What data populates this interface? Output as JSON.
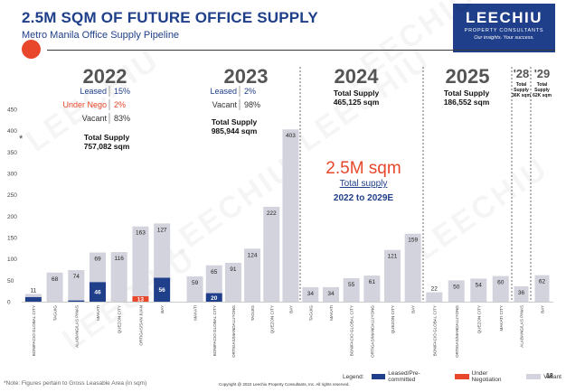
{
  "header": {
    "title": "2.5M SQM OF FUTURE OFFICE SUPPLY",
    "subtitle": "Metro Manila Office Supply Pipeline"
  },
  "logo": {
    "name": "LEECHIU",
    "sub": "PROPERTY CONSULTANTS",
    "tagline": "Our insights. Your success."
  },
  "watermark_text": "LEECHIU",
  "asterisk": "*",
  "colors": {
    "leased": "#1f3f8a",
    "under_nego": "#e8472b",
    "vacant": "#d3d3dd",
    "brand": "#1f3f8a"
  },
  "legend": {
    "title": "Legend:",
    "leased": "Leased/Pre-committed",
    "under_nego": "Under Negotiation",
    "vacant": "Vacant"
  },
  "footer": {
    "note": "*Note: Figures pertain to Gross Leasable Area (in sqm)",
    "copyright": "Copyright @ 2022 Leechiu Property Consultants, Inc. All rights reserved.",
    "page": "18"
  },
  "chart_data": {
    "type": "bar",
    "stacked": true,
    "ylim": [
      0,
      450
    ],
    "yticks": [
      0,
      50,
      100,
      150,
      200,
      250,
      300,
      350,
      400,
      450
    ],
    "grid": false,
    "legend_position": "bottom-right",
    "series_names": [
      "Leased/Pre-committed",
      "Under Negotiation",
      "Vacant"
    ],
    "highlight": {
      "big": "2.5M sqm",
      "label": "Total supply",
      "range": "2022 to 2029E"
    },
    "panels": [
      {
        "year": "2022",
        "stats": [
          {
            "label": "Leased",
            "value": "15%",
            "color": "#1f3f8a"
          },
          {
            "label": "Under Nego",
            "value": "2%",
            "color": "#e8472b"
          },
          {
            "label": "Vacant",
            "value": "83%",
            "color": "#333333"
          }
        ],
        "total_label": "Total Supply",
        "total_value": "757,082 sqm",
        "bars": [
          {
            "category": "BONIFACIO GLOBAL CITY",
            "leased": 11,
            "nego": 0,
            "vacant": 7,
            "label": "11"
          },
          {
            "category": "TAGUIG",
            "leased": 0,
            "nego": 0,
            "vacant": 68,
            "label": "68"
          },
          {
            "category": "ALABANG/LAS PINAS",
            "leased": 3,
            "nego": 0,
            "vacant": 71,
            "label": "74"
          },
          {
            "category": "MAKATI",
            "leased": 46,
            "nego": 0,
            "vacant": 69,
            "label": "69",
            "leased_label": "46"
          },
          {
            "category": "QUEZON CITY",
            "leased": 0,
            "nego": 0,
            "vacant": 116,
            "label": "116"
          },
          {
            "category": "ORTIGAS/SAN JUAN",
            "leased": 0,
            "nego": 13,
            "vacant": 163,
            "label": "163",
            "nego_label": "13"
          },
          {
            "category": "BAY",
            "leased": 56,
            "nego": 0,
            "vacant": 127,
            "label": "127",
            "leased_label": "56"
          }
        ]
      },
      {
        "year": "2023",
        "stats": [
          {
            "label": "Leased",
            "value": "2%",
            "color": "#1f3f8a"
          },
          {
            "label": "Vacant",
            "value": "98%",
            "color": "#333333"
          }
        ],
        "total_label": "Total Supply",
        "total_value": "985,944 sqm",
        "bars": [
          {
            "category": "MAKATI",
            "leased": 0,
            "nego": 0,
            "vacant": 59,
            "label": "59"
          },
          {
            "category": "BONIFACIO GLOBAL CITY",
            "leased": 20,
            "nego": 0,
            "vacant": 65,
            "label": "65",
            "leased_label": "20"
          },
          {
            "category": "ORTIGAS/MANDALUYONG",
            "leased": 0,
            "nego": 0,
            "vacant": 91,
            "label": "91"
          },
          {
            "category": "TAGUIG",
            "leased": 0,
            "nego": 0,
            "vacant": 124,
            "label": "124"
          },
          {
            "category": "QUEZON CITY",
            "leased": 0,
            "nego": 0,
            "vacant": 222,
            "label": "222"
          },
          {
            "category": "BAY",
            "leased": 0,
            "nego": 0,
            "vacant": 403,
            "label": "403"
          }
        ]
      },
      {
        "year": "2024",
        "stats": [],
        "total_label": "Total Supply",
        "total_value": "465,125 sqm",
        "bars": [
          {
            "category": "TAGUIG",
            "leased": 0,
            "nego": 0,
            "vacant": 34,
            "label": "34"
          },
          {
            "category": "MAKATI",
            "leased": 0,
            "nego": 0,
            "vacant": 34,
            "label": "34"
          },
          {
            "category": "BONIFACIO GLOBAL CITY",
            "leased": 0,
            "nego": 0,
            "vacant": 55,
            "label": "55"
          },
          {
            "category": "ORTIGAS/MANDALUYONG",
            "leased": 0,
            "nego": 0,
            "vacant": 61,
            "label": "61"
          },
          {
            "category": "QUEZON CITY",
            "leased": 0,
            "nego": 0,
            "vacant": 121,
            "label": "121"
          },
          {
            "category": "BAY",
            "leased": 0,
            "nego": 0,
            "vacant": 159,
            "label": "159"
          }
        ]
      },
      {
        "year": "2025",
        "stats": [],
        "total_label": "Total Supply",
        "total_value": "186,552 sqm",
        "bars": [
          {
            "category": "BONIFACIO GLOBAL CITY",
            "leased": 0,
            "nego": 0,
            "vacant": 22,
            "label": "22"
          },
          {
            "category": "ORTIGAS/MANDALUYONG",
            "leased": 0,
            "nego": 0,
            "vacant": 50,
            "label": "50"
          },
          {
            "category": "QUEZON CITY",
            "leased": 0,
            "nego": 0,
            "vacant": 54,
            "label": "54"
          },
          {
            "category": "MAKATI CITY",
            "leased": 0,
            "nego": 0,
            "vacant": 60,
            "label": "60"
          }
        ]
      },
      {
        "year": "'28",
        "stats": [],
        "total_label": "Total Supply",
        "total_value": "36K sqm",
        "bars": [
          {
            "category": "ALABANG/LAS PINAS",
            "leased": 0,
            "nego": 0,
            "vacant": 36,
            "label": "36"
          }
        ]
      },
      {
        "year": "'29",
        "stats": [],
        "total_label": "Total Supply",
        "total_value": "62K sqm",
        "bars": [
          {
            "category": "BAY",
            "leased": 0,
            "nego": 0,
            "vacant": 62,
            "label": "62"
          }
        ]
      }
    ]
  }
}
